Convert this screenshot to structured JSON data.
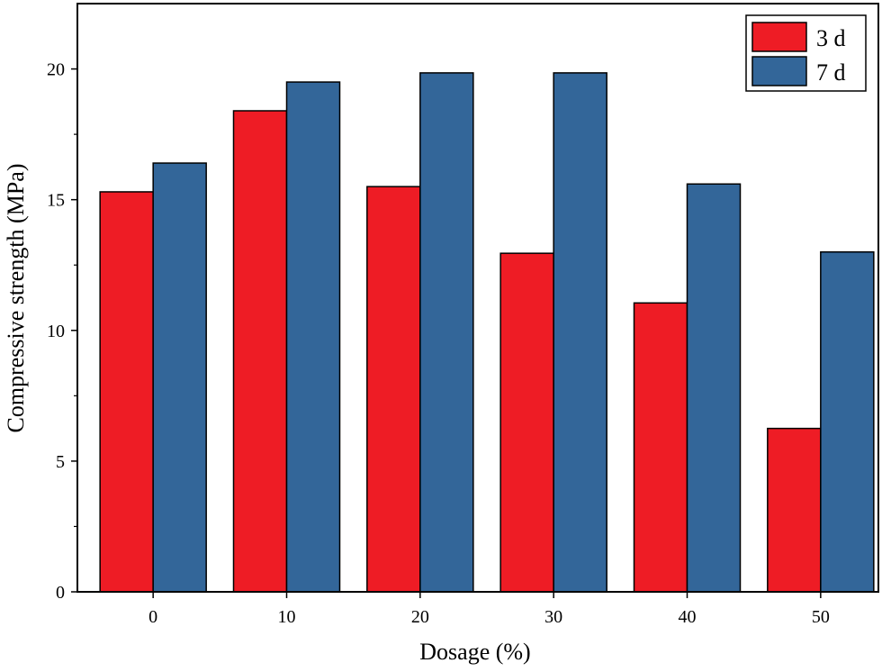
{
  "chart_data": {
    "type": "bar",
    "title": "",
    "xlabel": "Dosage (%)",
    "ylabel": "Compressive strength (MPa)",
    "categories": [
      "0",
      "10",
      "20",
      "30",
      "40",
      "50"
    ],
    "series": [
      {
        "name": "3 d",
        "color": "#ee1c25",
        "values": [
          15.3,
          18.4,
          15.5,
          12.95,
          11.05,
          6.25
        ]
      },
      {
        "name": "7 d",
        "color": "#336699",
        "values": [
          16.4,
          19.5,
          19.85,
          19.85,
          15.6,
          13.0
        ]
      }
    ],
    "ylim": [
      0,
      22.5
    ],
    "yticks": [
      0,
      5,
      10,
      15,
      20
    ],
    "legend_position": "top-right",
    "grid": false
  }
}
